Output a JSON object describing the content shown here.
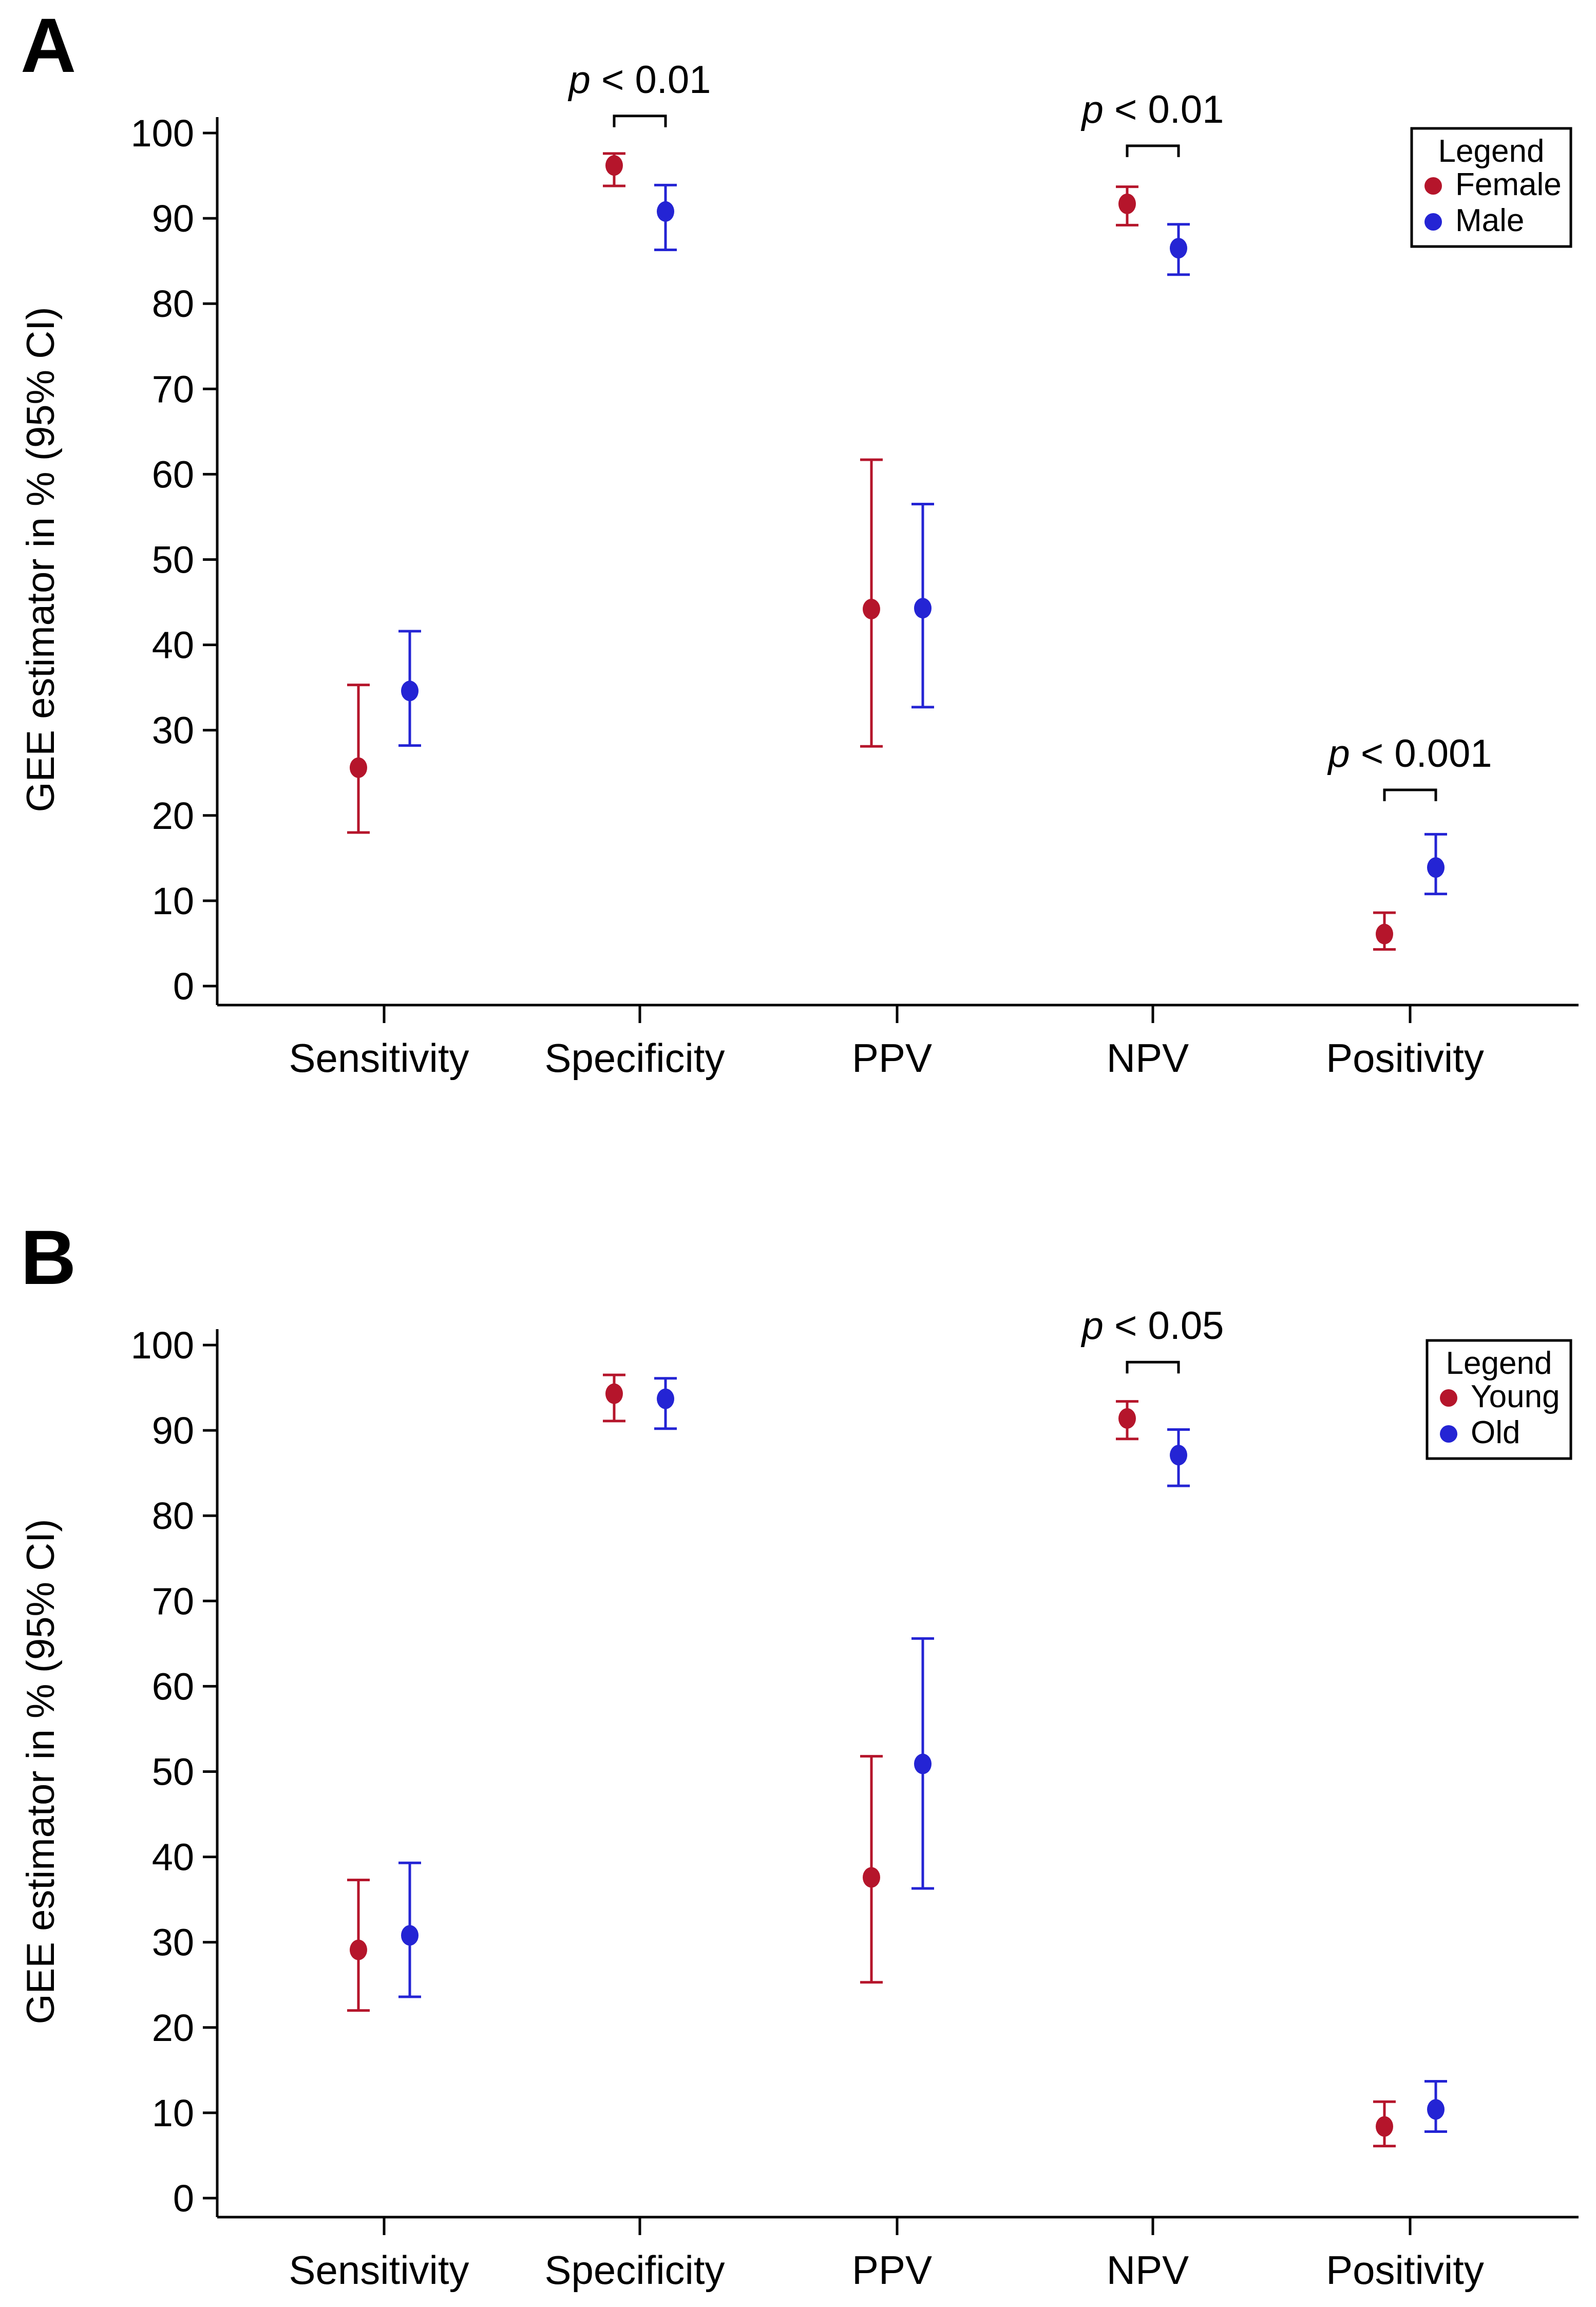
{
  "chart_data": [
    {
      "panel_label": "A",
      "type": "scatter",
      "subtype": "point-with-error-bars",
      "ylabel": "GEE estimator in % (95% CI)",
      "ylim": [
        0,
        100
      ],
      "yticks": [
        0,
        10,
        20,
        30,
        40,
        50,
        60,
        70,
        80,
        90,
        100
      ],
      "categories": [
        "Sensitivity",
        "Specificity",
        "PPV",
        "NPV",
        "Positivity"
      ],
      "legend": {
        "title": "Legend",
        "position": "top-right"
      },
      "series": [
        {
          "name": "Female",
          "color": "#b5152b",
          "values": [
            25.6,
            96.2,
            44.2,
            91.7,
            6.1
          ],
          "ci_low": [
            18.0,
            93.8,
            28.1,
            89.2,
            4.3
          ],
          "ci_high": [
            35.3,
            97.6,
            61.7,
            93.7,
            8.6
          ]
        },
        {
          "name": "Male",
          "color": "#2424d4",
          "values": [
            34.6,
            90.8,
            44.3,
            86.5,
            13.9
          ],
          "ci_low": [
            28.2,
            86.3,
            32.7,
            83.4,
            10.8
          ],
          "ci_high": [
            41.6,
            93.9,
            56.5,
            89.3,
            17.8
          ]
        }
      ],
      "annotations": [
        {
          "category": "Specificity",
          "p": "p",
          "text": " < 0.01",
          "level": 102
        },
        {
          "category": "NPV",
          "p": "p",
          "text": " < 0.01",
          "level": 98.5
        },
        {
          "category": "Positivity",
          "p": "p",
          "text": " < 0.001",
          "level": 23
        }
      ]
    },
    {
      "panel_label": "B",
      "type": "scatter",
      "subtype": "point-with-error-bars",
      "ylabel": "GEE estimator in % (95% CI)",
      "ylim": [
        0,
        100
      ],
      "yticks": [
        0,
        10,
        20,
        30,
        40,
        50,
        60,
        70,
        80,
        90,
        100
      ],
      "categories": [
        "Sensitivity",
        "Specificity",
        "PPV",
        "NPV",
        "Positivity"
      ],
      "legend": {
        "title": "Legend",
        "position": "top-right"
      },
      "series": [
        {
          "name": "Young",
          "color": "#b5152b",
          "values": [
            29.1,
            94.3,
            37.6,
            91.4,
            8.4
          ],
          "ci_low": [
            22.0,
            91.1,
            25.3,
            89.0,
            6.1
          ],
          "ci_high": [
            37.3,
            96.5,
            51.8,
            93.4,
            11.3
          ]
        },
        {
          "name": "Old",
          "color": "#2424d4",
          "values": [
            30.8,
            93.7,
            50.9,
            87.1,
            10.4
          ],
          "ci_low": [
            23.6,
            90.2,
            36.3,
            83.5,
            7.8
          ],
          "ci_high": [
            39.3,
            96.1,
            65.6,
            90.1,
            13.7
          ]
        }
      ],
      "annotations": [
        {
          "category": "NPV",
          "p": "p",
          "text": " < 0.05",
          "level": 98
        }
      ]
    }
  ]
}
